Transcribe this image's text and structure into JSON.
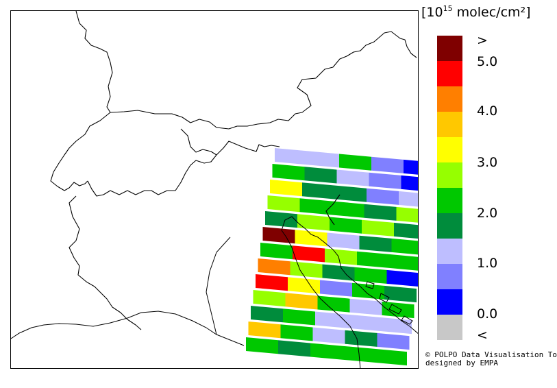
{
  "colorbar": {
    "title_pre": "[10",
    "title_exp": "15",
    "title_post": " molec/cm²]",
    "classes": [
      {
        "color": "#7f0000"
      },
      {
        "color": "#ff0000"
      },
      {
        "color": "#ff7f00"
      },
      {
        "color": "#ffc800"
      },
      {
        "color": "#ffff00"
      },
      {
        "color": "#96ff00"
      },
      {
        "color": "#00c800"
      },
      {
        "color": "#008c3c"
      },
      {
        "color": "#bebeff"
      },
      {
        "color": "#8080ff"
      },
      {
        "color": "#0000ff"
      },
      {
        "color": "#c8c8c8"
      }
    ],
    "labels": [
      ">",
      "5.0",
      "4.0",
      "3.0",
      "2.0",
      "1.0",
      "0.0",
      "<"
    ]
  },
  "credit": {
    "line1": "© POLPO Data Visualisation Tool",
    "line2": "designed by EMPA"
  },
  "satellite_swath": {
    "rows": [
      [
        "#bebeff",
        "#bebeff",
        "#00c800",
        "#8080ff",
        "#0000ff"
      ],
      [
        "#00c800",
        "#008c3c",
        "#bebeff",
        "#8080ff",
        "#0000ff"
      ],
      [
        "#ffff00",
        "#008c3c",
        "#008c3c",
        "#8080ff",
        "#bebeff"
      ],
      [
        "#96ff00",
        "#00c800",
        "#00c800",
        "#008c3c",
        "#96ff00"
      ],
      [
        "#008c3c",
        "#96ff00",
        "#00c800",
        "#96ff00",
        "#008c3c"
      ],
      [
        "#7f0000",
        "#ffff00",
        "#bebeff",
        "#008c3c",
        "#00c800"
      ],
      [
        "#00c800",
        "#ff0000",
        "#96ff00",
        "#00c800",
        "#00c800"
      ],
      [
        "#ff7f00",
        "#96ff00",
        "#008c3c",
        "#00c800",
        "#0000ff"
      ],
      [
        "#ff0000",
        "#ffff00",
        "#8080ff",
        "#00c800",
        "#008c3c"
      ],
      [
        "#96ff00",
        "#ffc800",
        "#00c800",
        "#bebeff",
        "#00c800"
      ],
      [
        "#008c3c",
        "#00c800",
        "#bebeff",
        "#bebeff",
        "#bebeff"
      ],
      [
        "#ffc800",
        "#00c800",
        "#bebeff",
        "#008c3c",
        "#8080ff"
      ],
      [
        "#00c800",
        "#008c3c",
        "#00c800",
        "#00c800",
        "#00c800"
      ]
    ]
  }
}
